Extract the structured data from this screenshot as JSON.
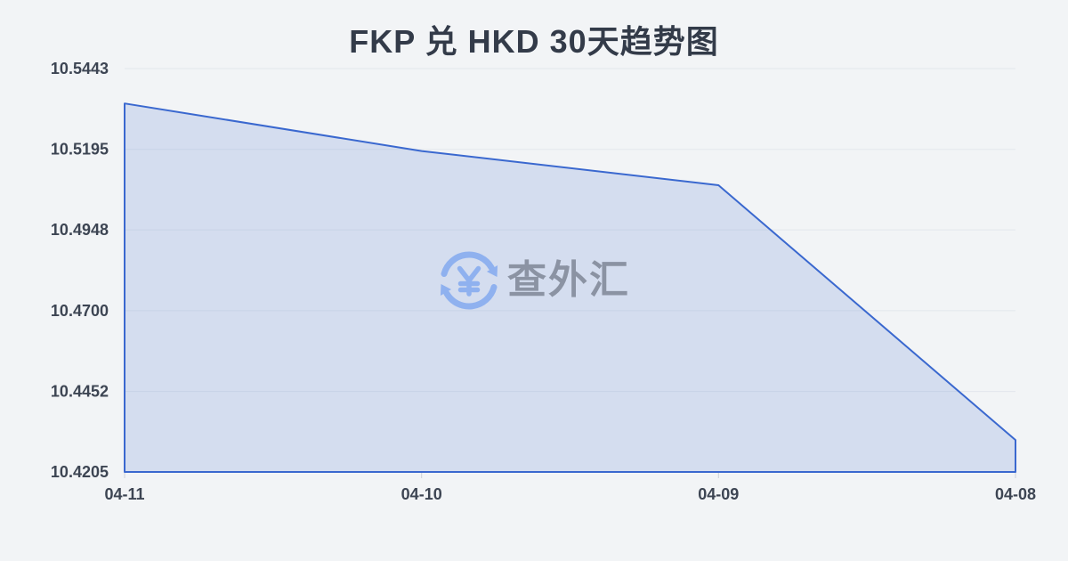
{
  "page": {
    "background": "#f2f4f6"
  },
  "watermark": {
    "text": "查外汇",
    "icon": "currency-exchange-icon"
  },
  "chart_data": {
    "type": "area",
    "title": "FKP 兑 HKD 30天趋势图",
    "x": [
      "04-11",
      "04-10",
      "04-09",
      "04-08"
    ],
    "values": [
      10.5336,
      10.519,
      10.5085,
      10.4303
    ],
    "y_tick_labels": [
      "10.5443",
      "10.5195",
      "10.4948",
      "10.4700",
      "10.4452",
      "10.4205"
    ],
    "ylim": [
      10.4205,
      10.5443
    ],
    "xlabel": "",
    "ylabel": "",
    "grid": true,
    "legend": false,
    "colors": {
      "line": "#3a68cf",
      "fill": "#3a68cf",
      "fill_opacity": "0.16",
      "grid": "#e3e7ec",
      "tick": "#ccd1d9",
      "axis_text": "#3d4553",
      "title": "#333b49",
      "watermark_text": "#8b93a3",
      "watermark_icon": "#8fb1ef",
      "background": "#f2f4f6"
    }
  }
}
